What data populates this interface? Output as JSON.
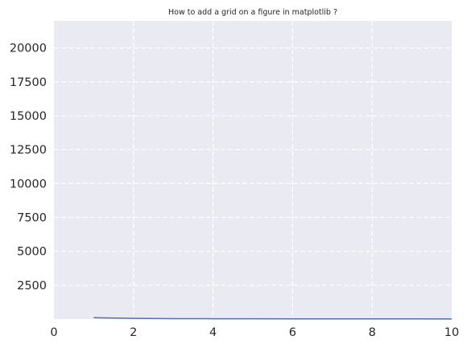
{
  "chart_data": {
    "type": "line",
    "title": "How to add a grid on a figure in matplotlib ?",
    "xlabel": "",
    "ylabel": "",
    "xlim": [
      0,
      10
    ],
    "ylim": [
      0,
      22000
    ],
    "x_ticks": [
      0,
      2,
      4,
      6,
      8,
      10
    ],
    "y_ticks": [
      2500,
      5000,
      7500,
      10000,
      12500,
      15000,
      17500,
      20000
    ],
    "x_tick_labels": [
      "0",
      "2",
      "4",
      "6",
      "8",
      "10"
    ],
    "y_tick_labels": [
      "2500",
      "5000",
      "7500",
      "10000",
      "12500",
      "15000",
      "17500",
      "20000"
    ],
    "grid": true,
    "grid_style": "dashed",
    "legend": "none",
    "colors": {
      "plot_background": "#eaeaf2",
      "grid": "#ffffff",
      "line": "#4c72b0"
    },
    "series": [
      {
        "x": [
          1,
          2,
          3,
          4,
          5,
          6,
          7,
          8,
          9,
          10
        ],
        "y": [
          100,
          50,
          33,
          25,
          20,
          17,
          14,
          12,
          11,
          10
        ]
      }
    ]
  }
}
